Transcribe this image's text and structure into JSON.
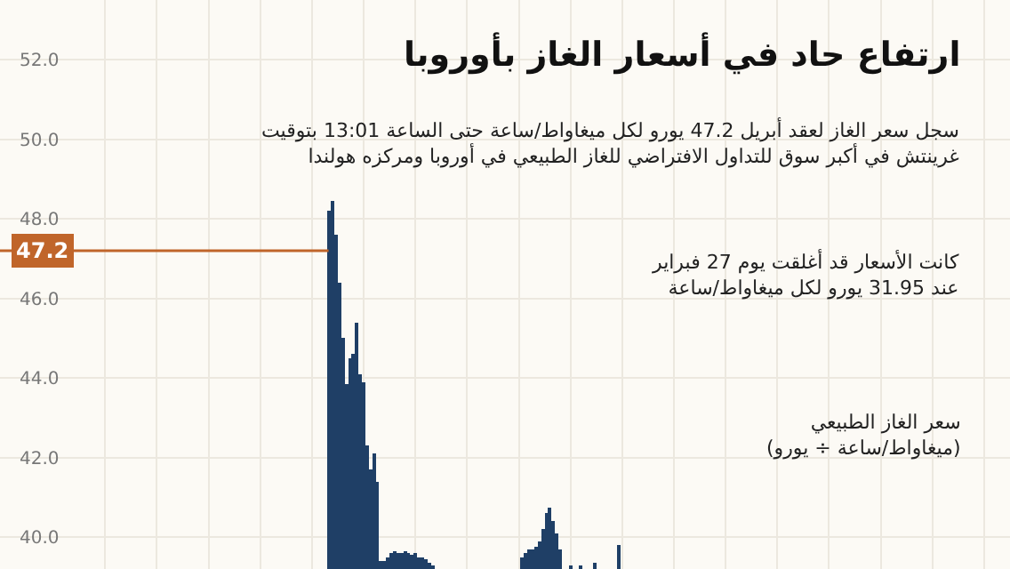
{
  "chart_data": {
    "type": "bar",
    "title": "ارتفاع حاد في أسعار الغاز بأوروبا",
    "subtitle": "سجل سعر الغاز لعقد أبريل 47.2 يورو لكل ميغاواط/ساعة حتى الساعة 13:01 بتوقيت\nغرينتش في أكبر سوق للتداول الافتراضي للغاز الطبيعي في أوروبا ومركزه هولندا",
    "ylabel": "سعر الغاز الطبيعي\n(ميغاواط/ساعة ÷ يورو)",
    "annotations": [
      "كانت الأسعار قد أغلقت يوم 27 فبراير\nعند 31.95 يورو لكل ميغاواط/ساعة"
    ],
    "categories": [
      null,
      null,
      null,
      null,
      null,
      null,
      null,
      null,
      null,
      null,
      null,
      null,
      null,
      null,
      null,
      null,
      null,
      null,
      null,
      null,
      null,
      null,
      null,
      null,
      null,
      null,
      null,
      null,
      null,
      null,
      null,
      null,
      null,
      null,
      null,
      null,
      null,
      null,
      null,
      null,
      null,
      null,
      null,
      null,
      null,
      null,
      null,
      null,
      null,
      null,
      null,
      null,
      null,
      null,
      null,
      null,
      null,
      null,
      null,
      null,
      null,
      null,
      null,
      null,
      null,
      null,
      null,
      null,
      null,
      null,
      null,
      null,
      null,
      null,
      null,
      null,
      null,
      null,
      null,
      null,
      null,
      null,
      null,
      null,
      null,
      null,
      null,
      null,
      null,
      null,
      null,
      null,
      null,
      null,
      null,
      null,
      null,
      null,
      null,
      null,
      null,
      null,
      null,
      null,
      null,
      null,
      null,
      null,
      null,
      null,
      null,
      null,
      null,
      null,
      null,
      null,
      null,
      null,
      null,
      null,
      null,
      null,
      null,
      null,
      null,
      null,
      null,
      null,
      null,
      null,
      null,
      null,
      null,
      null,
      null,
      null,
      null,
      null,
      null,
      null,
      null,
      null,
      null,
      null,
      null,
      null,
      null,
      null,
      null,
      null,
      null,
      null,
      null,
      null,
      null,
      null,
      null,
      null,
      null,
      null,
      null,
      null,
      null,
      null,
      null,
      null,
      null,
      null,
      null,
      null,
      null,
      null,
      null,
      null,
      null,
      null,
      null,
      null,
      null,
      null,
      null,
      null,
      null,
      null,
      null,
      null,
      null,
      null,
      null,
      null,
      null,
      null,
      null,
      null,
      null,
      null,
      null,
      null,
      null,
      null,
      null,
      null,
      null,
      null,
      null,
      null,
      null,
      null,
      null,
      null,
      null,
      null,
      null,
      null,
      null,
      null,
      null,
      null,
      null,
      null,
      null,
      null,
      null,
      null,
      null,
      null,
      null,
      null,
      null,
      null,
      null,
      null,
      null,
      null,
      null,
      null,
      null,
      null,
      null,
      null,
      null,
      null,
      null,
      null,
      null,
      null,
      null,
      null,
      null,
      null,
      null,
      null,
      null,
      null,
      null,
      null,
      null,
      null,
      null,
      null,
      null,
      null,
      null,
      null,
      null,
      null,
      null,
      null,
      null,
      null,
      null,
      null,
      null,
      null,
      null,
      null,
      null,
      null,
      null,
      null,
      null,
      null,
      null,
      null,
      null,
      null,
      null,
      null,
      null,
      null,
      null,
      null,
      null
    ],
    "values": [
      null,
      null,
      null,
      null,
      null,
      null,
      null,
      null,
      null,
      null,
      null,
      null,
      null,
      null,
      null,
      null,
      null,
      null,
      null,
      null,
      null,
      null,
      null,
      null,
      null,
      null,
      null,
      null,
      null,
      null,
      null,
      null,
      null,
      null,
      null,
      null,
      null,
      null,
      null,
      null,
      null,
      null,
      null,
      null,
      null,
      null,
      null,
      null,
      null,
      null,
      null,
      null,
      null,
      null,
      null,
      null,
      null,
      null,
      null,
      null,
      null,
      null,
      null,
      null,
      null,
      null,
      null,
      null,
      null,
      null,
      null,
      null,
      null,
      null,
      null,
      null,
      null,
      null,
      null,
      null,
      null,
      null,
      null,
      null,
      null,
      null,
      null,
      null,
      null,
      null,
      null,
      null,
      null,
      null,
      null,
      48.2,
      48.45,
      47.6,
      46.4,
      45.0,
      43.85,
      44.5,
      44.6,
      45.4,
      44.1,
      43.9,
      42.3,
      41.7,
      42.1,
      41.4,
      39.4,
      39.4,
      39.5,
      39.6,
      39.65,
      39.6,
      39.6,
      39.65,
      39.6,
      39.55,
      39.6,
      39.5,
      39.5,
      39.45,
      39.35,
      39.3,
      null,
      null,
      null,
      null,
      null,
      null,
      null,
      null,
      null,
      null,
      null,
      null,
      null,
      null,
      null,
      null,
      null,
      null,
      null,
      null,
      null,
      null,
      null,
      null,
      null,
      39.5,
      39.6,
      39.7,
      39.7,
      39.75,
      39.9,
      40.2,
      40.6,
      40.75,
      40.4,
      40.1,
      39.7,
      null,
      null,
      39.3,
      null,
      null,
      39.3,
      null,
      null,
      null,
      39.35,
      null,
      null,
      null,
      null,
      null,
      null,
      39.8,
      null,
      null,
      null,
      null,
      null,
      null,
      null,
      null,
      null,
      null,
      null,
      null,
      null,
      null,
      null,
      null,
      null,
      null,
      null,
      null,
      null,
      null,
      null,
      null,
      null,
      null,
      null,
      null,
      null,
      null,
      null,
      null,
      null,
      null,
      null,
      null,
      null,
      null,
      null,
      null,
      null,
      null,
      null,
      null,
      null,
      null,
      null,
      null,
      null,
      null,
      null,
      null,
      null,
      null,
      null,
      null,
      null,
      null,
      null,
      null,
      null,
      null,
      null,
      null,
      null,
      null,
      null,
      null,
      null,
      null,
      null,
      null,
      null,
      null,
      null,
      null,
      null,
      null,
      null,
      null,
      null,
      null,
      null,
      null,
      null,
      null,
      null,
      null,
      null,
      null,
      null,
      null,
      null,
      null,
      null,
      null,
      null,
      null,
      null,
      null,
      null,
      null,
      null,
      null,
      null,
      null,
      null,
      null,
      null,
      null,
      null,
      null,
      null
    ],
    "color": "#1f3f66",
    "ylim": [
      39.2,
      53.5
    ],
    "yticks": [
      {
        "value": 40,
        "label": "40.0"
      },
      {
        "value": 42,
        "label": "42.0"
      },
      {
        "value": 44,
        "label": "44.0"
      },
      {
        "value": 46,
        "label": "46.0"
      },
      {
        "value": 48,
        "label": "48.0"
      },
      {
        "value": 50,
        "label": "50.0"
      },
      {
        "value": 52,
        "label": "52.0"
      }
    ],
    "ref_lines": [
      {
        "axis": "y",
        "value": 47.2,
        "label": "47.2",
        "color": "#c0652a"
      }
    ],
    "grid": true,
    "tick_labels": "y"
  }
}
